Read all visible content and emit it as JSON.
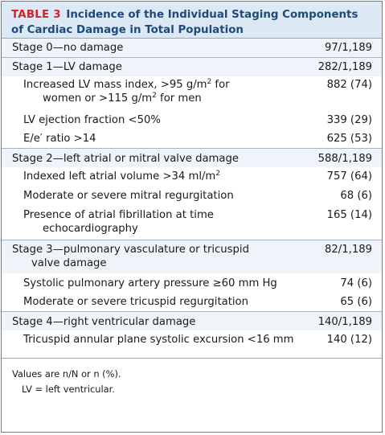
{
  "table": {
    "label": "TABLE 3",
    "title": "Incidence of the Individual Staging Components of Cardiac Damage in Total Population"
  },
  "rows": {
    "r0": {
      "label": "Stage 0—no damage",
      "value": "97/1,189"
    },
    "r1": {
      "label": "Stage 1—LV damage",
      "value": "282/1,189"
    },
    "r2": {
      "label_a": "Increased LV mass index, >95 g/m",
      "sup_a": "2",
      "label_b": " for",
      "label_c": "women or >115 g/m",
      "sup_c": "2",
      "label_d": " for men",
      "value": "882 (74)"
    },
    "r3": {
      "label": "LV ejection fraction <50%",
      "value": "339 (29)"
    },
    "r4": {
      "label": "E/e′ ratio >14",
      "value": "625 (53)"
    },
    "r5": {
      "label": "Stage 2—left atrial or mitral valve damage",
      "value": "588/1,189"
    },
    "r6": {
      "label_a": "Indexed left atrial volume >34 ml/m",
      "sup_a": "2",
      "value": "757 (64)"
    },
    "r7": {
      "label": "Moderate or severe mitral regurgitation",
      "value": "68 (6)"
    },
    "r8": {
      "label_a": "Presence of atrial fibrillation at time",
      "label_b": "echocardiography",
      "value": "165 (14)"
    },
    "r9": {
      "label_a": "Stage 3—pulmonary vasculature or tricuspid",
      "label_b": "valve damage",
      "value": "82/1,189"
    },
    "r10": {
      "label": "Systolic pulmonary artery pressure ≥60 mm Hg",
      "value": "74 (6)"
    },
    "r11": {
      "label": "Moderate or severe tricuspid regurgitation",
      "value": "65 (6)"
    },
    "r12": {
      "label": "Stage 4—right ventricular damage",
      "value": "140/1,189"
    },
    "r13": {
      "label": "Tricuspid annular plane systolic excursion <16 mm",
      "value": "140 (12)"
    }
  },
  "notes": {
    "line1": "Values are n/N or n (%).",
    "line2": "LV = left ventricular."
  }
}
